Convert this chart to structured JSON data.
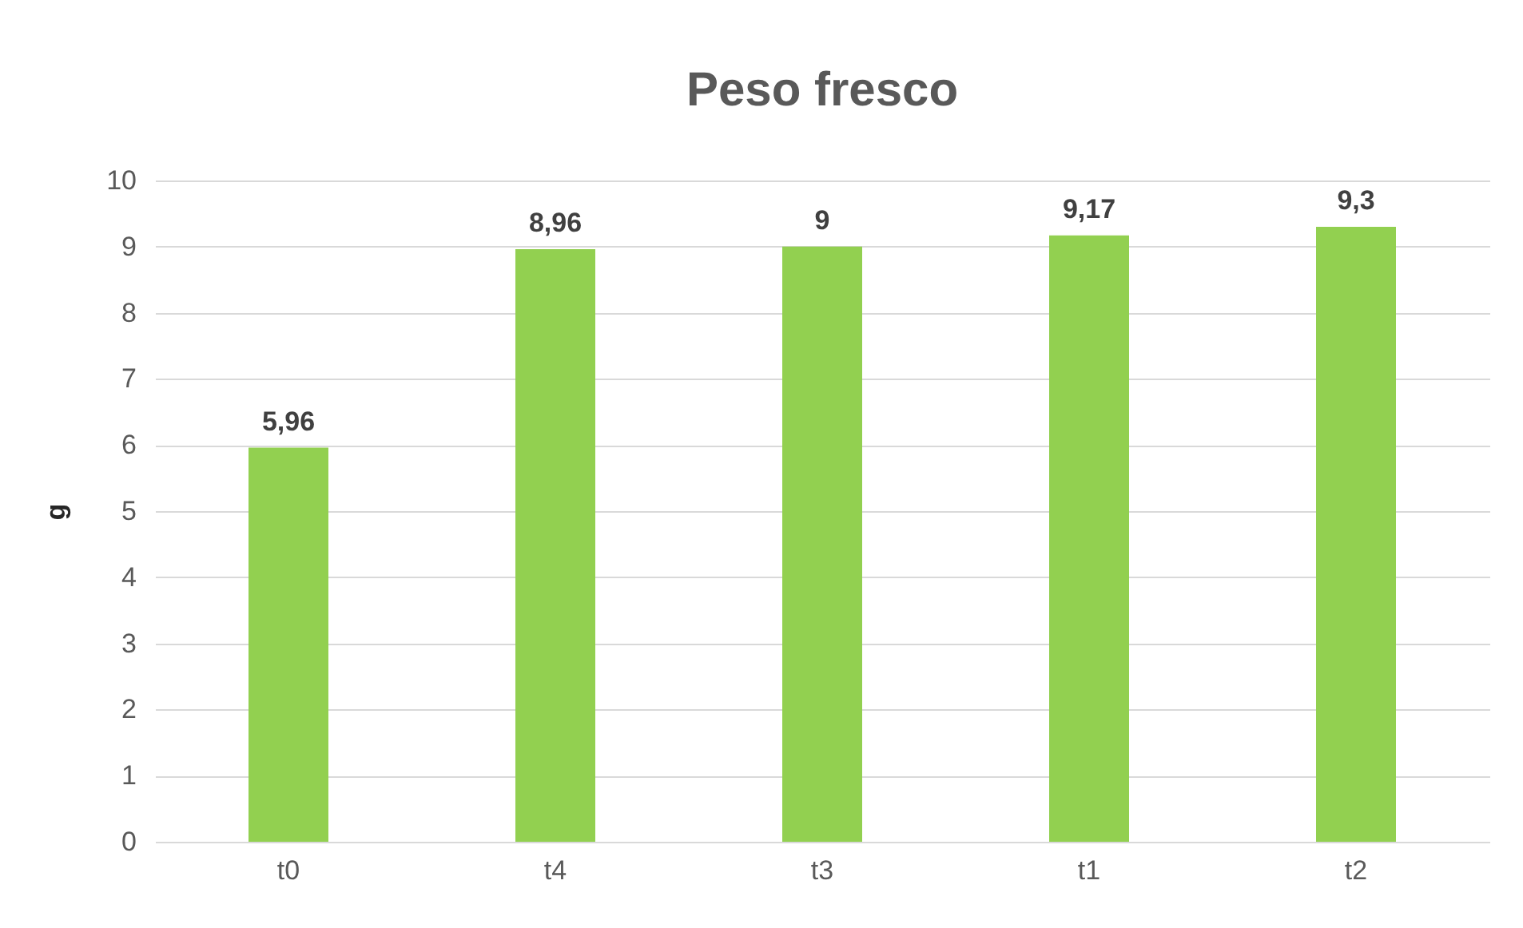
{
  "chart_data": {
    "type": "bar",
    "title": "Peso fresco",
    "ylabel": "g",
    "categories": [
      "t0",
      "t4",
      "t3",
      "t1",
      "t2"
    ],
    "values": [
      5.96,
      8.96,
      9,
      9.17,
      9.3
    ],
    "value_labels": [
      "5,96",
      "8,96",
      "9",
      "9,17",
      "9,3"
    ],
    "color": "#92d050",
    "ylim": [
      0,
      10
    ],
    "yticks": [
      0,
      1,
      2,
      3,
      4,
      5,
      6,
      7,
      8,
      9,
      10
    ],
    "grid": "y"
  }
}
